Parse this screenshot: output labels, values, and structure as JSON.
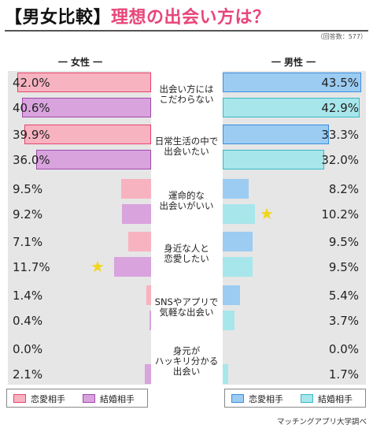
{
  "title": {
    "bracket": "【男女比較】",
    "main": "理想の出会い方は？"
  },
  "note": "（回答数：577）",
  "source": "マッチングアプリ大学調べ",
  "colors": {
    "female_love": "#f8b3c1",
    "female_love_border": "#e8456a",
    "female_marriage": "#d9a3de",
    "female_marriage_border": "#a04aaa",
    "male_love": "#9cccf2",
    "male_love_border": "#3a8ee0",
    "male_marriage": "#a7e6ea",
    "male_marriage_border": "#39b7c8",
    "panel_bg": "#e6e6e6",
    "star": "#f2d51c"
  },
  "chart_data": {
    "type": "bar",
    "title": "理想の出会い方は？",
    "xlim": [
      0,
      45
    ],
    "column_headers": {
      "female": "一 女性 一",
      "male": "一 男性 一"
    },
    "categories": [
      "出会い方には\nこだわらない",
      "日常生活の中で\n出会いたい",
      "運命的な\n出会いがいい",
      "身近な人と\n恋愛したい",
      "SNSやアプリで\n気軽な出会い",
      "身元が\nハッキリ分かる\n出会い"
    ],
    "series": [
      {
        "name": "女性 恋愛相手",
        "side": "female",
        "type": "love",
        "values": [
          42.0,
          39.9,
          9.5,
          7.1,
          1.4,
          0.0
        ]
      },
      {
        "name": "女性 結婚相手",
        "side": "female",
        "type": "marriage",
        "values": [
          40.6,
          36.0,
          9.2,
          11.7,
          0.4,
          2.1
        ]
      },
      {
        "name": "男性 恋愛相手",
        "side": "male",
        "type": "love",
        "values": [
          43.5,
          33.3,
          8.2,
          9.5,
          5.4,
          0.0
        ]
      },
      {
        "name": "男性 結婚相手",
        "side": "male",
        "type": "marriage",
        "values": [
          42.9,
          32.0,
          10.2,
          9.5,
          3.7,
          1.7
        ]
      }
    ],
    "labels": {
      "female_love": [
        "42.0%",
        "39.9%",
        "9.5%",
        "7.1%",
        "1.4%",
        "0.0%"
      ],
      "female_marriage": [
        "40.6%",
        "36.0%",
        "9.2%",
        "11.7%",
        "0.4%",
        "2.1%"
      ],
      "male_love": [
        "43.5%",
        "33.3%",
        "8.2%",
        "9.5%",
        "5.4%",
        "0.0%"
      ],
      "male_marriage": [
        "42.9%",
        "32.0%",
        "10.2%",
        "9.5%",
        "3.7%",
        "1.7%"
      ]
    },
    "highlight_stars": [
      {
        "side": "female",
        "category_index": 3,
        "type": "marriage"
      },
      {
        "side": "male",
        "category_index": 2,
        "type": "marriage"
      }
    ],
    "legend": {
      "female": [
        {
          "label": "恋愛相手",
          "type": "love"
        },
        {
          "label": "結婚相手",
          "type": "marriage"
        }
      ],
      "male": [
        {
          "label": "恋愛相手",
          "type": "love"
        },
        {
          "label": "結婚相手",
          "type": "marriage"
        }
      ]
    }
  }
}
